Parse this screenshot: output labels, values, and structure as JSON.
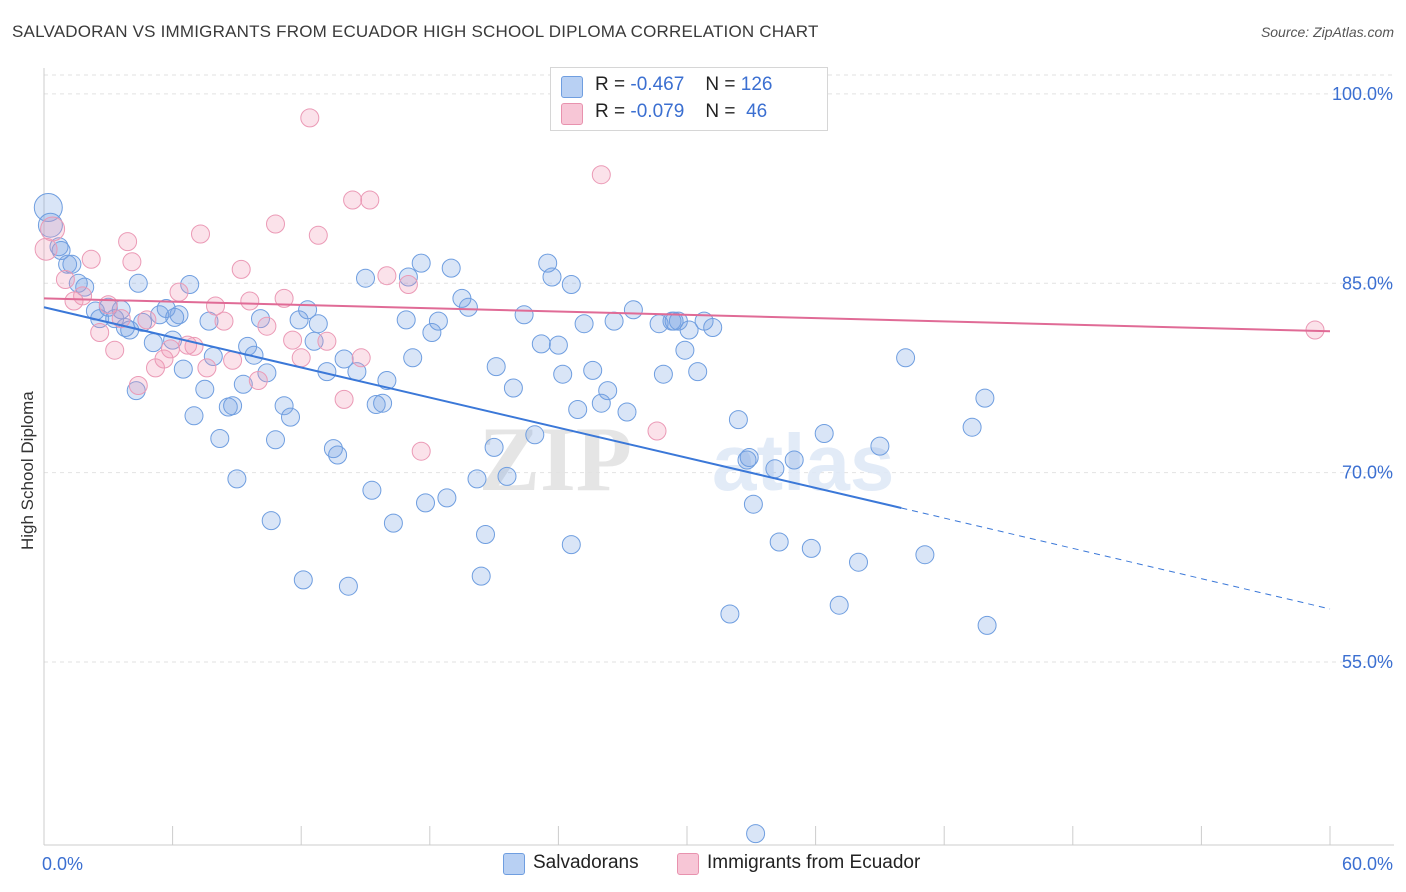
{
  "title": "SALVADORAN VS IMMIGRANTS FROM ECUADOR HIGH SCHOOL DIPLOMA CORRELATION CHART",
  "source": "Source: ZipAtlas.com",
  "watermark": {
    "zip": "ZIP",
    "atlas": "atlas"
  },
  "legend": {
    "r_label": "R =",
    "n_label": "N =",
    "rows": [
      {
        "r": "-0.467",
        "n": "126",
        "color": "#6f9ee0",
        "fill": "#b8d0f3"
      },
      {
        "r": "-0.079",
        "n": "46",
        "color": "#e892ae",
        "fill": "#f7c6d6"
      }
    ]
  },
  "bottom_legend": [
    {
      "label": "Salvadorans",
      "color": "#6f9ee0",
      "fill": "#b8d0f3"
    },
    {
      "label": "Immigrants from Ecuador",
      "color": "#e892ae",
      "fill": "#f7c6d6"
    }
  ],
  "chart_data": {
    "type": "scatter",
    "title": "SALVADORAN VS IMMIGRANTS FROM ECUADOR HIGH SCHOOL DIPLOMA CORRELATION CHART",
    "xlabel": "",
    "ylabel": "High School Diploma",
    "xlim": [
      0,
      60
    ],
    "ylim": [
      40.5,
      101.5
    ],
    "x_tick_labels": [
      "0.0%",
      "60.0%"
    ],
    "y_ticks": [
      55,
      70,
      85,
      100
    ],
    "y_tick_labels": [
      "55.0%",
      "70.0%",
      "85.0%",
      "100.0%"
    ],
    "grid": true,
    "legend_position": "top-center",
    "series": [
      {
        "name": "Salvadorans",
        "color": "#3b78d8",
        "trend": {
          "x": [
            0,
            40
          ],
          "y": [
            83.1,
            67.2
          ],
          "dashed_to": [
            60,
            59.2
          ]
        },
        "points": [
          [
            0.2,
            91.0,
            14
          ],
          [
            0.3,
            89.6,
            12
          ],
          [
            0.7,
            87.9,
            9
          ],
          [
            0.8,
            87.6,
            9
          ],
          [
            1.1,
            86.5,
            9
          ],
          [
            1.3,
            86.5,
            9
          ],
          [
            1.6,
            85.0,
            9
          ],
          [
            1.9,
            84.7,
            9
          ],
          [
            2.4,
            82.8,
            9
          ],
          [
            2.6,
            82.2,
            9
          ],
          [
            3.0,
            83.1,
            9
          ],
          [
            3.3,
            82.2,
            9
          ],
          [
            3.6,
            82.9,
            9
          ],
          [
            3.8,
            81.5,
            9
          ],
          [
            4.0,
            81.3,
            9
          ],
          [
            4.3,
            76.5,
            9
          ],
          [
            4.4,
            85.0,
            9
          ],
          [
            4.6,
            81.9,
            9
          ],
          [
            5.1,
            80.3,
            9
          ],
          [
            5.4,
            82.5,
            9
          ],
          [
            5.7,
            83.0,
            9
          ],
          [
            6.0,
            80.5,
            9
          ],
          [
            6.3,
            82.5,
            9
          ],
          [
            6.1,
            82.3,
            9
          ],
          [
            6.5,
            78.2,
            9
          ],
          [
            6.8,
            84.9,
            9
          ],
          [
            7.0,
            74.5,
            9
          ],
          [
            7.5,
            76.6,
            9
          ],
          [
            7.7,
            82.0,
            9
          ],
          [
            7.9,
            79.2,
            9
          ],
          [
            8.2,
            72.7,
            9
          ],
          [
            8.6,
            75.2,
            9
          ],
          [
            8.8,
            75.3,
            9
          ],
          [
            9.0,
            69.5,
            9
          ],
          [
            9.3,
            77.0,
            9
          ],
          [
            9.5,
            80.0,
            9
          ],
          [
            9.8,
            79.3,
            9
          ],
          [
            10.1,
            82.2,
            9
          ],
          [
            10.4,
            77.9,
            9
          ],
          [
            10.6,
            66.2,
            9
          ],
          [
            10.8,
            72.6,
            9
          ],
          [
            11.2,
            75.3,
            9
          ],
          [
            11.5,
            74.4,
            9
          ],
          [
            11.9,
            82.1,
            9
          ],
          [
            12.1,
            61.5,
            9
          ],
          [
            12.3,
            82.9,
            9
          ],
          [
            12.6,
            80.4,
            9
          ],
          [
            12.8,
            81.8,
            9
          ],
          [
            13.2,
            78.0,
            9
          ],
          [
            13.5,
            71.9,
            9
          ],
          [
            13.7,
            71.4,
            9
          ],
          [
            14.0,
            79.0,
            9
          ],
          [
            14.2,
            61.0,
            9
          ],
          [
            14.6,
            78.0,
            9
          ],
          [
            15.0,
            85.4,
            9
          ],
          [
            15.3,
            68.6,
            9
          ],
          [
            15.5,
            75.4,
            9
          ],
          [
            15.8,
            75.5,
            9
          ],
          [
            16.0,
            77.3,
            9
          ],
          [
            16.3,
            66.0,
            9
          ],
          [
            16.9,
            82.1,
            9
          ],
          [
            17.0,
            85.5,
            9
          ],
          [
            17.2,
            79.1,
            9
          ],
          [
            17.6,
            86.6,
            9
          ],
          [
            17.8,
            67.6,
            9
          ],
          [
            18.1,
            81.1,
            9
          ],
          [
            18.4,
            82.0,
            9
          ],
          [
            18.8,
            68.0,
            9
          ],
          [
            19.0,
            86.2,
            9
          ],
          [
            19.5,
            83.8,
            9
          ],
          [
            19.8,
            83.1,
            9
          ],
          [
            20.4,
            61.8,
            9
          ],
          [
            20.2,
            69.5,
            9
          ],
          [
            20.6,
            65.1,
            9
          ],
          [
            21.0,
            72.0,
            9
          ],
          [
            21.1,
            78.4,
            9
          ],
          [
            21.6,
            69.7,
            9
          ],
          [
            21.9,
            76.7,
            9
          ],
          [
            22.4,
            82.5,
            9
          ],
          [
            22.9,
            73.0,
            9
          ],
          [
            23.2,
            80.2,
            9
          ],
          [
            23.5,
            86.6,
            9
          ],
          [
            23.7,
            85.5,
            9
          ],
          [
            24.0,
            80.1,
            9
          ],
          [
            24.2,
            77.8,
            9
          ],
          [
            24.6,
            84.9,
            9
          ],
          [
            24.9,
            75.0,
            9
          ],
          [
            25.2,
            81.8,
            9
          ],
          [
            25.6,
            78.1,
            9
          ],
          [
            26.0,
            75.5,
            9
          ],
          [
            26.3,
            76.5,
            9
          ],
          [
            26.6,
            82.0,
            9
          ],
          [
            27.2,
            74.8,
            9
          ],
          [
            27.5,
            82.9,
            9
          ],
          [
            28.7,
            81.8,
            9
          ],
          [
            28.9,
            77.8,
            9
          ],
          [
            29.3,
            82.0,
            9
          ],
          [
            29.6,
            82.0,
            9
          ],
          [
            30.1,
            81.3,
            9
          ],
          [
            30.5,
            78.0,
            9
          ],
          [
            24.6,
            64.3,
            9
          ],
          [
            29.9,
            79.7,
            9
          ],
          [
            24.8,
            100.0,
            9
          ],
          [
            25.0,
            100.0,
            9
          ],
          [
            25.2,
            100.0,
            9
          ],
          [
            30.8,
            82.0,
            9
          ],
          [
            31.2,
            81.5,
            9
          ],
          [
            32.4,
            74.2,
            9
          ],
          [
            32.8,
            71.0,
            9
          ],
          [
            33.1,
            67.5,
            9
          ],
          [
            32.9,
            71.2,
            9
          ],
          [
            34.1,
            70.3,
            9
          ],
          [
            34.3,
            64.5,
            9
          ],
          [
            35.0,
            71.0,
            9
          ],
          [
            35.8,
            64.0,
            9
          ],
          [
            36.4,
            73.1,
            9
          ],
          [
            37.1,
            59.5,
            9
          ],
          [
            38.0,
            62.9,
            9
          ],
          [
            39.0,
            72.1,
            9
          ],
          [
            32.0,
            58.8,
            9
          ],
          [
            40.2,
            79.1,
            9
          ],
          [
            41.1,
            63.5,
            9
          ],
          [
            43.3,
            73.6,
            9
          ],
          [
            43.9,
            75.9,
            9
          ],
          [
            44.0,
            57.9,
            9
          ],
          [
            33.2,
            41.4,
            9
          ],
          [
            29.4,
            82.0,
            9
          ]
        ]
      },
      {
        "name": "Immigrants from Ecuador",
        "color": "#e06b96",
        "trend": {
          "x": [
            0,
            60
          ],
          "y": [
            83.8,
            81.2
          ]
        },
        "points": [
          [
            0.1,
            87.7,
            11
          ],
          [
            0.4,
            89.3,
            12
          ],
          [
            1.0,
            85.3,
            9
          ],
          [
            1.4,
            83.6,
            9
          ],
          [
            1.8,
            84.0,
            9
          ],
          [
            2.2,
            86.9,
            9
          ],
          [
            2.6,
            81.1,
            9
          ],
          [
            3.0,
            83.3,
            9
          ],
          [
            3.3,
            79.7,
            9
          ],
          [
            3.6,
            82.2,
            9
          ],
          [
            3.9,
            88.3,
            9
          ],
          [
            4.1,
            86.7,
            9
          ],
          [
            4.4,
            76.9,
            9
          ],
          [
            4.8,
            82.1,
            9
          ],
          [
            5.2,
            78.3,
            9
          ],
          [
            5.6,
            79.0,
            9
          ],
          [
            5.9,
            79.8,
            9
          ],
          [
            6.3,
            84.3,
            9
          ],
          [
            6.7,
            80.1,
            9
          ],
          [
            7.0,
            80.0,
            9
          ],
          [
            7.3,
            88.9,
            9
          ],
          [
            7.6,
            78.3,
            9
          ],
          [
            8.0,
            83.2,
            9
          ],
          [
            8.4,
            82.0,
            9
          ],
          [
            8.8,
            78.9,
            9
          ],
          [
            9.2,
            86.1,
            9
          ],
          [
            9.6,
            83.6,
            9
          ],
          [
            10.0,
            77.3,
            9
          ],
          [
            10.4,
            81.6,
            9
          ],
          [
            10.8,
            89.7,
            9
          ],
          [
            11.2,
            83.8,
            9
          ],
          [
            11.6,
            80.5,
            9
          ],
          [
            12.0,
            79.1,
            9
          ],
          [
            12.4,
            98.1,
            9
          ],
          [
            12.8,
            88.8,
            9
          ],
          [
            13.2,
            80.4,
            9
          ],
          [
            14.0,
            75.8,
            9
          ],
          [
            14.4,
            91.6,
            9
          ],
          [
            14.8,
            79.1,
            9
          ],
          [
            15.2,
            91.6,
            9
          ],
          [
            16.0,
            85.6,
            9
          ],
          [
            17.0,
            84.9,
            9
          ],
          [
            17.6,
            71.7,
            9
          ],
          [
            26.0,
            93.6,
            9
          ],
          [
            28.6,
            73.3,
            9
          ],
          [
            59.3,
            81.3,
            9
          ]
        ]
      }
    ]
  }
}
